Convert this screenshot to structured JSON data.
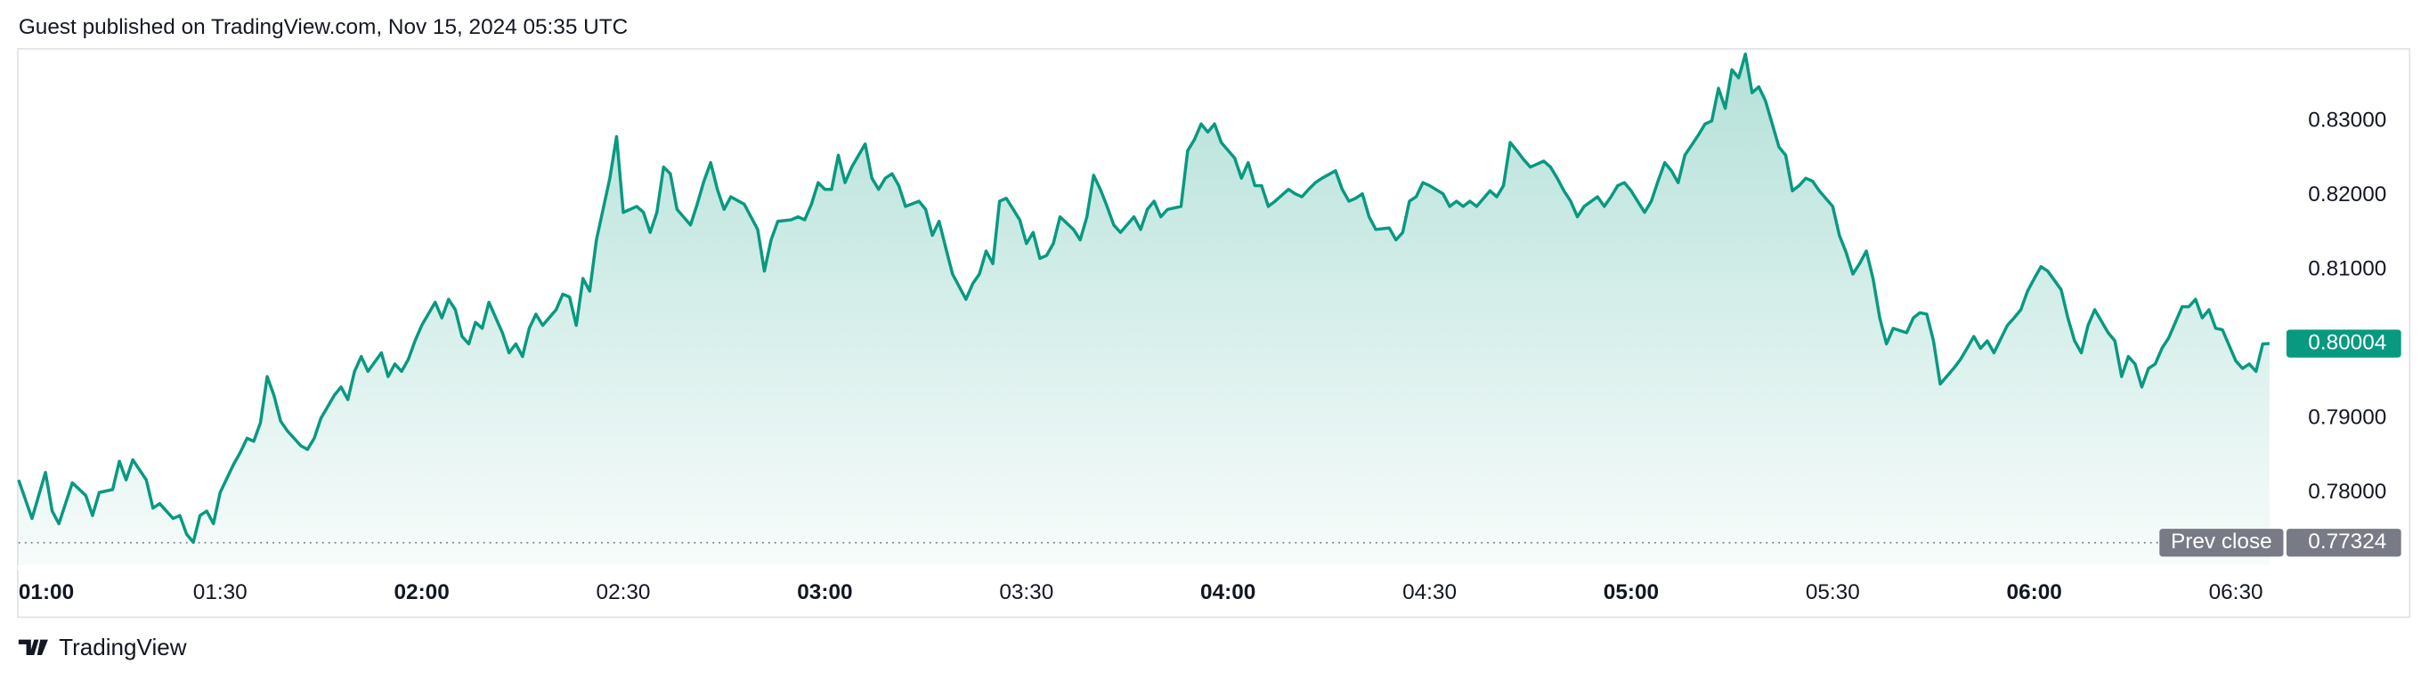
{
  "chart_data": {
    "type": "area",
    "title": "Guest published on TradingView.com, Nov 15, 2024 05:35 UTC",
    "brand": "TradingView",
    "color": "#089981",
    "x": [
      60,
      62,
      64,
      65,
      66,
      68,
      70,
      71,
      72,
      74,
      75,
      76,
      77,
      79,
      80,
      81,
      83,
      84,
      85,
      86,
      87,
      88,
      89,
      90,
      92,
      93,
      94,
      95,
      96,
      97,
      98,
      99,
      100,
      102,
      103,
      104,
      105,
      107,
      108,
      109,
      110,
      111,
      112,
      114,
      115,
      116,
      117,
      118,
      119,
      120,
      122,
      123,
      124,
      125,
      126,
      127,
      128,
      129,
      130,
      132,
      133,
      134,
      135,
      136,
      137,
      138,
      140,
      141,
      142,
      143,
      144,
      145,
      146,
      148,
      149,
      150,
      152,
      153,
      154,
      155,
      156,
      157,
      158,
      160,
      161,
      162,
      163,
      164,
      165,
      166,
      168,
      169,
      170,
      171,
      172,
      173,
      175,
      176,
      177,
      178,
      179,
      180,
      181,
      182,
      183,
      184,
      186,
      187,
      188,
      189,
      190,
      191,
      192,
      194,
      195,
      196,
      197,
      198,
      199,
      201,
      202,
      203,
      204,
      205,
      206,
      207,
      209,
      210,
      211,
      212,
      213,
      214,
      215,
      217,
      218,
      219,
      220,
      221,
      222,
      223,
      224,
      226,
      227,
      228,
      229,
      230,
      231,
      233,
      234,
      235,
      236,
      237,
      238,
      239,
      241,
      242,
      243,
      244,
      245,
      246,
      247,
      249,
      250,
      251,
      252,
      253,
      254,
      256,
      257,
      258,
      259,
      260,
      261,
      262,
      264,
      265,
      266,
      267,
      268,
      269,
      270,
      272,
      273,
      274,
      275,
      276,
      277,
      279,
      280,
      281,
      282,
      283,
      284,
      285,
      287,
      288,
      289,
      290,
      291,
      292,
      293,
      295,
      296,
      297,
      298,
      299,
      300,
      302,
      303,
      304,
      305,
      306,
      307,
      308,
      310,
      311,
      312,
      313,
      314,
      315,
      316,
      317,
      318,
      319,
      320,
      322,
      323,
      324,
      325,
      326,
      327,
      328,
      330,
      331,
      332,
      333,
      334,
      335,
      336,
      337,
      338,
      339,
      341,
      342,
      343,
      344,
      345,
      346,
      348,
      349,
      350,
      351,
      352,
      353,
      354,
      356,
      357,
      358,
      359,
      360,
      361,
      362,
      364,
      365,
      366,
      367,
      368,
      369,
      371,
      372,
      373,
      374,
      375,
      376,
      377,
      378,
      379,
      380,
      382,
      383,
      384,
      385,
      386,
      387,
      388,
      390,
      391,
      392,
      393,
      394,
      395
    ],
    "values": [
      0.7817,
      0.7765,
      0.7827,
      0.7775,
      0.7758,
      0.7813,
      0.7796,
      0.7769,
      0.78,
      0.7804,
      0.7842,
      0.7817,
      0.7844,
      0.7817,
      0.7779,
      0.7785,
      0.7765,
      0.7769,
      0.7744,
      0.7733,
      0.7769,
      0.7775,
      0.7758,
      0.78,
      0.7838,
      0.7854,
      0.7873,
      0.7869,
      0.7894,
      0.7956,
      0.7931,
      0.7896,
      0.7883,
      0.7863,
      0.7858,
      0.7873,
      0.79,
      0.7931,
      0.7942,
      0.7925,
      0.7963,
      0.7983,
      0.7963,
      0.7988,
      0.7956,
      0.7973,
      0.7963,
      0.7979,
      0.8004,
      0.8025,
      0.8056,
      0.8035,
      0.806,
      0.8046,
      0.801,
      0.8,
      0.8029,
      0.8021,
      0.8056,
      0.8015,
      0.7988,
      0.8,
      0.7983,
      0.8021,
      0.804,
      0.8025,
      0.8046,
      0.8067,
      0.8063,
      0.8025,
      0.8088,
      0.8071,
      0.814,
      0.8223,
      0.8279,
      0.8177,
      0.8185,
      0.8177,
      0.815,
      0.8177,
      0.8238,
      0.8229,
      0.8181,
      0.816,
      0.8188,
      0.8219,
      0.8244,
      0.8208,
      0.8181,
      0.8198,
      0.8188,
      0.8171,
      0.8154,
      0.8098,
      0.814,
      0.8165,
      0.8167,
      0.8171,
      0.8167,
      0.8188,
      0.8217,
      0.8208,
      0.8208,
      0.8254,
      0.8217,
      0.8238,
      0.8269,
      0.8223,
      0.8208,
      0.8223,
      0.8229,
      0.8213,
      0.8185,
      0.8192,
      0.8181,
      0.8146,
      0.8165,
      0.8129,
      0.8094,
      0.806,
      0.8081,
      0.8094,
      0.8125,
      0.8108,
      0.8192,
      0.8196,
      0.8167,
      0.8135,
      0.815,
      0.8115,
      0.8119,
      0.8135,
      0.8171,
      0.8154,
      0.814,
      0.8171,
      0.8227,
      0.8208,
      0.8185,
      0.816,
      0.815,
      0.8171,
      0.8154,
      0.8181,
      0.8192,
      0.8171,
      0.8181,
      0.8185,
      0.826,
      0.8275,
      0.8296,
      0.8285,
      0.8296,
      0.8271,
      0.825,
      0.8223,
      0.8244,
      0.8213,
      0.8213,
      0.8185,
      0.8192,
      0.8208,
      0.8202,
      0.8198,
      0.8208,
      0.8217,
      0.8223,
      0.8233,
      0.8208,
      0.8192,
      0.8196,
      0.8202,
      0.8171,
      0.8154,
      0.8156,
      0.814,
      0.815,
      0.8192,
      0.8198,
      0.8217,
      0.8213,
      0.8202,
      0.8185,
      0.8192,
      0.8185,
      0.8192,
      0.8185,
      0.8206,
      0.8198,
      0.8213,
      0.8271,
      0.826,
      0.8248,
      0.8238,
      0.8246,
      0.8238,
      0.8223,
      0.8206,
      0.8192,
      0.8171,
      0.8185,
      0.8198,
      0.8185,
      0.8198,
      0.8213,
      0.8217,
      0.8206,
      0.8177,
      0.8192,
      0.8219,
      0.8244,
      0.8233,
      0.8217,
      0.8254,
      0.8281,
      0.8296,
      0.83,
      0.8344,
      0.8317,
      0.8369,
      0.8358,
      0.839,
      0.8338,
      0.8346,
      0.8327,
      0.8265,
      0.8254,
      0.8206,
      0.8213,
      0.8223,
      0.8219,
      0.8206,
      0.8185,
      0.8146,
      0.8123,
      0.8094,
      0.8108,
      0.8125,
      0.8088,
      0.8035,
      0.8,
      0.8021,
      0.8015,
      0.8035,
      0.8042,
      0.804,
      0.8004,
      0.7946,
      0.7967,
      0.7979,
      0.7994,
      0.801,
      0.7994,
      0.8004,
      0.7988,
      0.8025,
      0.8035,
      0.8046,
      0.8071,
      0.8088,
      0.8104,
      0.8098,
      0.8073,
      0.8035,
      0.8004,
      0.7988,
      0.8025,
      0.8046,
      0.8015,
      0.8004,
      0.7956,
      0.7983,
      0.7973,
      0.7942,
      0.7967,
      0.7973,
      0.7994,
      0.8008,
      0.805,
      0.805,
      0.806,
      0.8035,
      0.8046,
      0.8021,
      0.8019,
      0.7977,
      0.7967,
      0.7973,
      0.7963,
      0.8,
      0.80004
    ],
    "xlim": [
      60,
      395
    ],
    "xticks": [
      {
        "value": 60,
        "label": "01:00"
      },
      {
        "value": 90,
        "label": "01:30"
      },
      {
        "value": 120,
        "label": "02:00"
      },
      {
        "value": 150,
        "label": "02:30"
      },
      {
        "value": 180,
        "label": "03:00"
      },
      {
        "value": 210,
        "label": "03:30"
      },
      {
        "value": 240,
        "label": "04:00"
      },
      {
        "value": 270,
        "label": "04:30"
      },
      {
        "value": 300,
        "label": "05:00"
      },
      {
        "value": 330,
        "label": "05:30"
      },
      {
        "value": 360,
        "label": "06:00"
      },
      {
        "value": 390,
        "label": "06:30"
      }
    ],
    "ylim": [
      0.7702,
      0.8396
    ],
    "yticks": [
      {
        "value": 0.78,
        "label": "0.78000"
      },
      {
        "value": 0.79,
        "label": "0.79000"
      },
      {
        "value": 0.8,
        "label": "0.80000"
      },
      {
        "value": 0.81,
        "label": "0.81000"
      },
      {
        "value": 0.82,
        "label": "0.82000"
      },
      {
        "value": 0.83,
        "label": "0.83000"
      }
    ],
    "prev_close": {
      "label": "Prev close",
      "value": 0.77324
    }
  }
}
